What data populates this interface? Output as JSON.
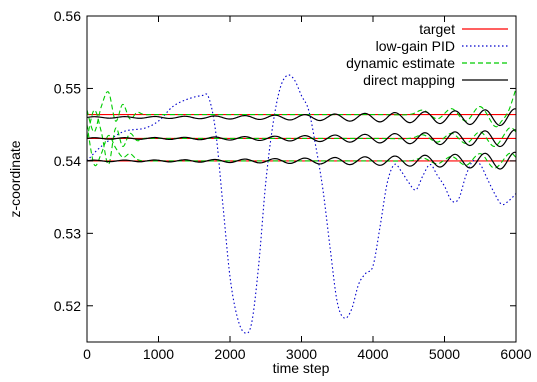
{
  "chart_data": {
    "type": "line",
    "title": "",
    "xlabel": "time step",
    "ylabel": "z-coordinate",
    "xlim": [
      0,
      6000
    ],
    "ylim": [
      0.515,
      0.56
    ],
    "grid": false,
    "legend_position": "top-right",
    "x_ticks": [
      0,
      1000,
      2000,
      3000,
      4000,
      5000,
      6000
    ],
    "x_tick_labels": [
      "0",
      "1000",
      "2000",
      "3000",
      "4000",
      "5000",
      "6000"
    ],
    "y_ticks": [
      0.52,
      0.53,
      0.54,
      0.55,
      0.56
    ],
    "y_tick_labels": [
      "0.52",
      "0.53",
      "0.54",
      "0.55",
      "0.56"
    ],
    "series": [
      {
        "name": "target",
        "color": "#ff0000",
        "dash": "solid",
        "traces": [
          {
            "points": [
              [
                0,
                0.54
              ],
              [
                6000,
                0.54
              ]
            ]
          },
          {
            "points": [
              [
                0,
                0.5431
              ],
              [
                6000,
                0.5431
              ]
            ]
          },
          {
            "points": [
              [
                0,
                0.5464
              ],
              [
                6000,
                0.5464
              ]
            ]
          }
        ]
      },
      {
        "name": "low-gain PID",
        "color": "#0000cc",
        "dash": "dotted",
        "traces": [
          {
            "points": [
              [
                0,
                0.54
              ],
              [
                200,
                0.542
              ],
              [
                500,
                0.544
              ],
              [
                800,
                0.5445
              ],
              [
                1000,
                0.5455
              ],
              [
                1200,
                0.5475
              ],
              [
                1400,
                0.5485
              ],
              [
                1600,
                0.549
              ],
              [
                1700,
                0.5488
              ],
              [
                1800,
                0.544
              ],
              [
                1900,
                0.534
              ],
              [
                2000,
                0.524
              ],
              [
                2100,
                0.5185
              ],
              [
                2200,
                0.5163
              ],
              [
                2300,
                0.5175
              ],
              [
                2400,
                0.5255
              ],
              [
                2500,
                0.537
              ],
              [
                2600,
                0.545
              ],
              [
                2700,
                0.55
              ],
              [
                2800,
                0.5518
              ],
              [
                2900,
                0.5512
              ],
              [
                3000,
                0.549
              ],
              [
                3100,
                0.547
              ],
              [
                3200,
                0.542
              ],
              [
                3300,
                0.536
              ],
              [
                3400,
                0.528
              ],
              [
                3500,
                0.5205
              ],
              [
                3600,
                0.5183
              ],
              [
                3700,
                0.5195
              ],
              [
                3800,
                0.523
              ],
              [
                3900,
                0.5245
              ],
              [
                4000,
                0.5255
              ],
              [
                4100,
                0.531
              ],
              [
                4200,
                0.537
              ],
              [
                4300,
                0.5395
              ],
              [
                4400,
                0.5385
              ],
              [
                4500,
                0.537
              ],
              [
                4600,
                0.536
              ],
              [
                4700,
                0.538
              ],
              [
                4800,
                0.5395
              ],
              [
                4900,
                0.538
              ],
              [
                5000,
                0.5365
              ],
              [
                5100,
                0.5345
              ],
              [
                5200,
                0.5348
              ],
              [
                5300,
                0.538
              ],
              [
                5400,
                0.54
              ],
              [
                5500,
                0.5395
              ],
              [
                5600,
                0.5375
              ],
              [
                5700,
                0.5355
              ],
              [
                5800,
                0.534
              ],
              [
                5900,
                0.5345
              ],
              [
                6000,
                0.5355
              ]
            ]
          }
        ]
      },
      {
        "name": "dynamic estimate",
        "color": "#00cc00",
        "dash": "dashed",
        "traces": [
          {
            "points": [
              [
                0,
                0.545
              ],
              [
                100,
                0.5395
              ],
              [
                200,
                0.541
              ],
              [
                300,
                0.5435
              ],
              [
                400,
                0.5418
              ],
              [
                500,
                0.5405
              ],
              [
                600,
                0.541
              ],
              [
                700,
                0.5402
              ],
              [
                800,
                0.54
              ],
              [
                1000,
                0.54
              ],
              [
                2000,
                0.54
              ],
              [
                3000,
                0.54
              ],
              [
                4000,
                0.54
              ],
              [
                4500,
                0.54
              ],
              [
                4700,
                0.5404
              ],
              [
                4900,
                0.5396
              ],
              [
                5100,
                0.5406
              ],
              [
                5300,
                0.5394
              ],
              [
                5500,
                0.541
              ],
              [
                5700,
                0.539
              ],
              [
                5900,
                0.541
              ],
              [
                6000,
                0.5405
              ]
            ]
          },
          {
            "points": [
              [
                0,
                0.543
              ],
              [
                100,
                0.547
              ],
              [
                200,
                0.544
              ],
              [
                300,
                0.5395
              ],
              [
                400,
                0.5445
              ],
              [
                500,
                0.542
              ],
              [
                600,
                0.5438
              ],
              [
                700,
                0.5428
              ],
              [
                800,
                0.5431
              ],
              [
                1000,
                0.5431
              ],
              [
                2000,
                0.5431
              ],
              [
                3000,
                0.5431
              ],
              [
                4000,
                0.5431
              ],
              [
                4500,
                0.5431
              ],
              [
                4700,
                0.5436
              ],
              [
                4900,
                0.5426
              ],
              [
                5100,
                0.5438
              ],
              [
                5300,
                0.5424
              ],
              [
                5500,
                0.544
              ],
              [
                5700,
                0.542
              ],
              [
                5900,
                0.5445
              ],
              [
                6000,
                0.544
              ]
            ]
          },
          {
            "points": [
              [
                0,
                0.547
              ],
              [
                100,
                0.544
              ],
              [
                200,
                0.5475
              ],
              [
                300,
                0.5495
              ],
              [
                400,
                0.5455
              ],
              [
                500,
                0.5478
              ],
              [
                600,
                0.5458
              ],
              [
                700,
                0.5467
              ],
              [
                800,
                0.5464
              ],
              [
                1000,
                0.5464
              ],
              [
                2000,
                0.5464
              ],
              [
                3000,
                0.5464
              ],
              [
                4000,
                0.5464
              ],
              [
                4500,
                0.5464
              ],
              [
                4700,
                0.547
              ],
              [
                4900,
                0.5458
              ],
              [
                5100,
                0.5472
              ],
              [
                5300,
                0.5455
              ],
              [
                5500,
                0.5475
              ],
              [
                5700,
                0.5448
              ],
              [
                5800,
                0.5455
              ],
              [
                5900,
                0.547
              ],
              [
                6000,
                0.55
              ]
            ]
          }
        ]
      },
      {
        "name": "direct mapping",
        "color": "#000000",
        "dash": "solid",
        "traces": [
          {
            "baseline": 0.54,
            "start_amplitude": 0.0001,
            "end_amplitude": 0.0012,
            "period": 420
          },
          {
            "baseline": 0.5431,
            "start_amplitude": 0.0001,
            "end_amplitude": 0.0012,
            "period": 420
          },
          {
            "baseline": 0.546,
            "start_amplitude": 0.0001,
            "end_amplitude": 0.0012,
            "period": 420
          }
        ]
      }
    ]
  }
}
